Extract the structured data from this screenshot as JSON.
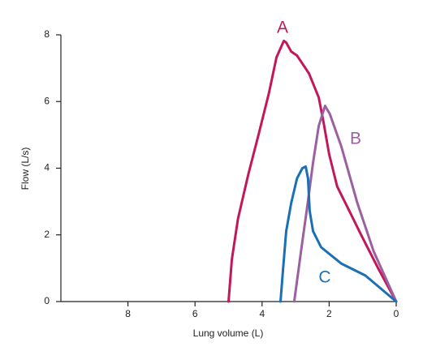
{
  "chart_data": {
    "type": "line",
    "x_label": "Lung volume (L)",
    "y_label": "Flow (L/s)",
    "xlim": [
      10,
      0
    ],
    "xticks": [
      8,
      6,
      4,
      2,
      0
    ],
    "ylim": [
      0,
      8
    ],
    "yticks": [
      0,
      2,
      4,
      6,
      8
    ],
    "series": [
      {
        "name": "A",
        "color": "#c2185b",
        "x": [
          5.0,
          4.9,
          4.72,
          4.41,
          4.1,
          3.8,
          3.57,
          3.35,
          3.28,
          3.13,
          2.96,
          2.6,
          2.31,
          2.17,
          2.0,
          1.76,
          1.4,
          1.04,
          0.55,
          0
        ],
        "values": [
          0,
          1.27,
          2.48,
          3.82,
          5.03,
          6.24,
          7.33,
          7.82,
          7.77,
          7.5,
          7.38,
          6.84,
          6.12,
          5.39,
          4.42,
          3.45,
          2.72,
          1.99,
          1.02,
          0
        ]
      },
      {
        "name": "B",
        "color": "#9c5fa0",
        "x": [
          3.04,
          2.84,
          2.67,
          2.48,
          2.31,
          2.12,
          1.98,
          1.64,
          1.16,
          0.67,
          0
        ],
        "values": [
          0,
          1.5,
          2.72,
          4.17,
          5.27,
          5.87,
          5.63,
          4.66,
          2.96,
          1.5,
          0
        ]
      },
      {
        "name": "C",
        "color": "#1a6fb5",
        "x": [
          3.45,
          3.37,
          3.28,
          3.13,
          2.96,
          2.8,
          2.7,
          2.63,
          2.58,
          2.48,
          2.24,
          1.64,
          0.92,
          0
        ],
        "values": [
          0,
          1.02,
          2.11,
          2.96,
          3.69,
          4.0,
          4.05,
          3.69,
          2.72,
          2.11,
          1.63,
          1.14,
          0.78,
          0
        ]
      }
    ]
  }
}
